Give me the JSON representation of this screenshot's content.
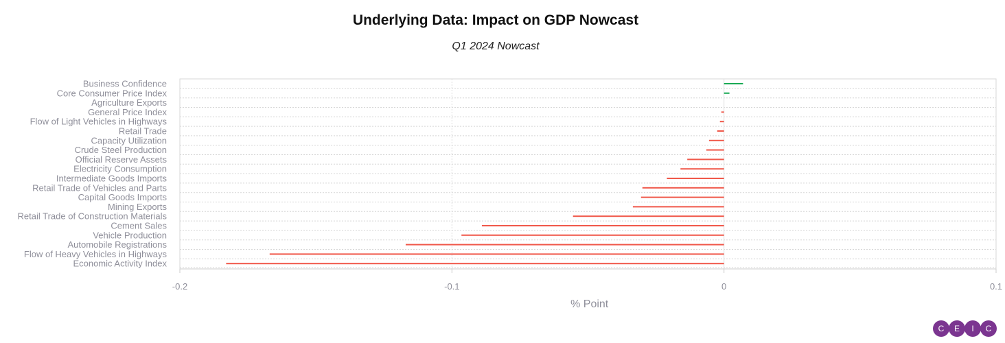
{
  "chart_data": {
    "type": "bar",
    "orientation": "horizontal",
    "title": "Underlying Data: Impact on GDP Nowcast",
    "subtitle": "Q1 2024 Nowcast",
    "xlabel": "% Point",
    "ylabel": "",
    "xlim": [
      -0.2,
      0.1
    ],
    "xticks": [
      -0.2,
      -0.1,
      0,
      0.1
    ],
    "tick_labels": [
      "-0.2",
      "-0.1",
      "0",
      "0.1"
    ],
    "grid": true,
    "colors": {
      "positive": "#1aaa55",
      "negative": "#f0584a"
    },
    "categories": [
      "Business Confidence",
      "Core Consumer Price Index",
      "Agriculture Exports",
      "General Price Index",
      "Flow of Light Vehicles in Highways",
      "Retail Trade",
      "Capacity Utilization",
      "Crude Steel Production",
      "Official Reserve Assets",
      "Electricity Consumption",
      "Intermediate Goods Imports",
      "Retail Trade of Vehicles and Parts",
      "Capital Goods Imports",
      "Mining Exports",
      "Retail Trade of Construction Materials",
      "Cement Sales",
      "Vehicle Production",
      "Automobile Registrations",
      "Flow of Heavy Vehicles in Highways",
      "Economic Activity Index"
    ],
    "values": [
      0.007,
      0.002,
      0.0,
      -0.001,
      -0.0015,
      -0.0025,
      -0.0055,
      -0.0065,
      -0.0135,
      -0.016,
      -0.021,
      -0.03,
      -0.0305,
      -0.0335,
      -0.0555,
      -0.089,
      -0.0965,
      -0.117,
      -0.167,
      -0.183
    ]
  },
  "logo": {
    "letters": [
      "C",
      "E",
      "I",
      "C"
    ]
  }
}
